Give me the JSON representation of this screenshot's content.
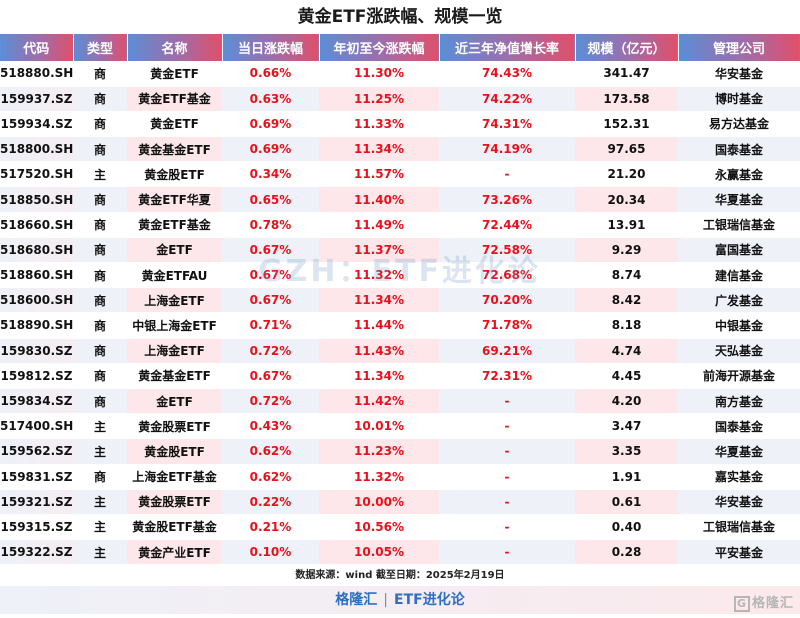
{
  "title": "黄金ETF涨跌幅、规模一览",
  "columns": [
    "代码",
    "类型",
    "名称",
    "当日涨跌幅",
    "年初至今涨跌幅",
    "近三年净值增长率",
    "规模（亿元）",
    "管理公司"
  ],
  "rows": [
    {
      "code": "518880.SH",
      "type": "商",
      "name": "黄金ETF",
      "daily": "0.66%",
      "ytd": "11.30%",
      "three_year": "74.43%",
      "size": "341.47",
      "manager": "华安基金"
    },
    {
      "code": "159937.SZ",
      "type": "商",
      "name": "黄金ETF基金",
      "daily": "0.63%",
      "ytd": "11.25%",
      "three_year": "74.22%",
      "size": "173.58",
      "manager": "博时基金"
    },
    {
      "code": "159934.SZ",
      "type": "商",
      "name": "黄金ETF",
      "daily": "0.69%",
      "ytd": "11.33%",
      "three_year": "74.31%",
      "size": "152.31",
      "manager": "易方达基金"
    },
    {
      "code": "518800.SH",
      "type": "商",
      "name": "黄金基金ETF",
      "daily": "0.69%",
      "ytd": "11.34%",
      "three_year": "74.19%",
      "size": "97.65",
      "manager": "国泰基金"
    },
    {
      "code": "517520.SH",
      "type": "主",
      "name": "黄金股ETF",
      "daily": "0.34%",
      "ytd": "11.57%",
      "three_year": "-",
      "size": "21.20",
      "manager": "永赢基金"
    },
    {
      "code": "518850.SH",
      "type": "商",
      "name": "黄金ETF华夏",
      "daily": "0.65%",
      "ytd": "11.40%",
      "three_year": "73.26%",
      "size": "20.34",
      "manager": "华夏基金"
    },
    {
      "code": "518660.SH",
      "type": "商",
      "name": "黄金ETF基金",
      "daily": "0.78%",
      "ytd": "11.49%",
      "three_year": "72.44%",
      "size": "13.91",
      "manager": "工银瑞信基金"
    },
    {
      "code": "518680.SH",
      "type": "商",
      "name": "金ETF",
      "daily": "0.67%",
      "ytd": "11.37%",
      "three_year": "72.58%",
      "size": "9.29",
      "manager": "富国基金"
    },
    {
      "code": "518860.SH",
      "type": "商",
      "name": "黄金ETFAU",
      "daily": "0.67%",
      "ytd": "11.32%",
      "three_year": "72.68%",
      "size": "8.74",
      "manager": "建信基金"
    },
    {
      "code": "518600.SH",
      "type": "商",
      "name": "上海金ETF",
      "daily": "0.67%",
      "ytd": "11.34%",
      "three_year": "70.20%",
      "size": "8.42",
      "manager": "广发基金"
    },
    {
      "code": "518890.SH",
      "type": "商",
      "name": "中银上海金ETF",
      "daily": "0.71%",
      "ytd": "11.44%",
      "three_year": "71.78%",
      "size": "8.18",
      "manager": "中银基金"
    },
    {
      "code": "159830.SZ",
      "type": "商",
      "name": "上海金ETF",
      "daily": "0.72%",
      "ytd": "11.43%",
      "three_year": "69.21%",
      "size": "4.74",
      "manager": "天弘基金"
    },
    {
      "code": "159812.SZ",
      "type": "商",
      "name": "黄金基金ETF",
      "daily": "0.67%",
      "ytd": "11.34%",
      "three_year": "72.31%",
      "size": "4.45",
      "manager": "前海开源基金"
    },
    {
      "code": "159834.SZ",
      "type": "商",
      "name": "金ETF",
      "daily": "0.72%",
      "ytd": "11.42%",
      "three_year": "-",
      "size": "4.20",
      "manager": "南方基金"
    },
    {
      "code": "517400.SH",
      "type": "主",
      "name": "黄金股票ETF",
      "daily": "0.43%",
      "ytd": "10.01%",
      "three_year": "-",
      "size": "3.47",
      "manager": "国泰基金"
    },
    {
      "code": "159562.SZ",
      "type": "主",
      "name": "黄金股ETF",
      "daily": "0.62%",
      "ytd": "11.23%",
      "three_year": "-",
      "size": "3.35",
      "manager": "华夏基金"
    },
    {
      "code": "159831.SZ",
      "type": "商",
      "name": "上海金ETF基金",
      "daily": "0.62%",
      "ytd": "11.32%",
      "three_year": "-",
      "size": "1.91",
      "manager": "嘉实基金"
    },
    {
      "code": "159321.SZ",
      "type": "主",
      "name": "黄金股票ETF",
      "daily": "0.22%",
      "ytd": "10.00%",
      "three_year": "-",
      "size": "0.61",
      "manager": "华安基金"
    },
    {
      "code": "159315.SZ",
      "type": "主",
      "name": "黄金股ETF基金",
      "daily": "0.21%",
      "ytd": "10.56%",
      "three_year": "-",
      "size": "0.40",
      "manager": "工银瑞信基金"
    },
    {
      "code": "159322.SZ",
      "type": "主",
      "name": "黄金产业ETF",
      "daily": "0.10%",
      "ytd": "10.05%",
      "three_year": "-",
      "size": "0.28",
      "manager": "平安基金"
    }
  ],
  "source_note": "数据来源：wind  截至日期：2025年2月19日",
  "footer": {
    "left": "格隆汇",
    "separator": "|",
    "right": "ETF进化论",
    "logo_text": "格隆汇",
    "logo_icon": "G"
  },
  "watermark": "GZH：ETF进化论",
  "colors": {
    "header_start": "#5b8ed6",
    "header_end": "#e0506a",
    "value_red": "#e8101a",
    "footer_blue": "#2e6fc4"
  }
}
